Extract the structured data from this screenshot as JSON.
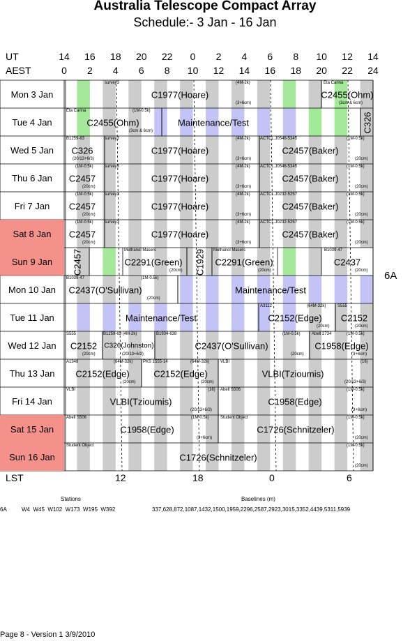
{
  "title": "Australia Telescope Compact Array",
  "subtitle": "Schedule:- 3  Jan - 16 Jan",
  "header": {
    "ut_label": "UT",
    "aest_label": "AEST",
    "ut_ticks": [
      "14",
      "16",
      "18",
      "20",
      "22",
      "0",
      "2",
      "4",
      "6",
      "8",
      "10",
      "12",
      "14"
    ],
    "aest_ticks": [
      "0",
      "2",
      "4",
      "6",
      "8",
      "10",
      "12",
      "14",
      "16",
      "18",
      "20",
      "22",
      "24"
    ]
  },
  "days": [
    {
      "label": "Mon   3  Jan",
      "weekend": false
    },
    {
      "label": "Tue   4  Jan",
      "weekend": false
    },
    {
      "label": "Wed   5  Jan",
      "weekend": false
    },
    {
      "label": "Thu   6  Jan",
      "weekend": false
    },
    {
      "label": "Fri    7  Jan",
      "weekend": false
    },
    {
      "label": "Sat   8  Jan",
      "weekend": true
    },
    {
      "label": "Sun   9  Jan",
      "weekend": true
    },
    {
      "label": "Mon  10 Jan",
      "weekend": false
    },
    {
      "label": "Tue   11 Jan",
      "weekend": false
    },
    {
      "label": "Wed  12 Jan",
      "weekend": false
    },
    {
      "label": "Thu   13 Jan",
      "weekend": false
    },
    {
      "label": "Fri    14 Jan",
      "weekend": false
    },
    {
      "label": "Sat   15 Jan",
      "weekend": true
    },
    {
      "label": "Sun   16 Jan",
      "weekend": true
    }
  ],
  "blocks": [
    {
      "row": 0,
      "label": "C1977(Hoare)",
      "start": 94,
      "end": 461,
      "label_x": 258,
      "tl": "survey3",
      "tl_x": 150,
      "tr": "(4M-2k)",
      "tr_x": 338,
      "br": "(3+6cm)",
      "br_x": 338
    },
    {
      "row": 0,
      "label": "C2455(Ohm)",
      "start": 461,
      "end": 535,
      "label_x": 498,
      "tl": "Eta Carina",
      "tl_x": 464,
      "br": "(3cm & 6cm)",
      "br_x": 486
    },
    {
      "row": 1,
      "label": "C2455(Ohm)",
      "start": 94,
      "end": 232,
      "label_x": 162,
      "tl": "Eta Carina",
      "tl_x": 95,
      "tr": "(1M-0.5k)",
      "tr_x": 190,
      "br": "(3cm & 6cm)",
      "br_x": 185
    },
    {
      "row": 1,
      "label": "Maintenance/Test",
      "start": 232,
      "end": 517,
      "label_x": 306
    },
    {
      "row": 1,
      "label": "C326",
      "start": 517,
      "end": 535,
      "label_x": 527,
      "vertical": true
    },
    {
      "row": 2,
      "label": "C326",
      "start": 94,
      "end": 150,
      "label_x": 118,
      "tl": "B1259-63",
      "tl_x": 95,
      "br": "(20/13+6/3)",
      "br_x": 104
    },
    {
      "row": 2,
      "label": "C1977(Hoare)",
      "start": 150,
      "end": 372,
      "label_x": 258,
      "tl": "survey3",
      "tl_x": 150,
      "tr": "(4M-2k)",
      "tr_x": 338,
      "br": "(3+6cm)",
      "br_x": 338
    },
    {
      "row": 2,
      "label": "C2457(Baker)",
      "start": 372,
      "end": 535,
      "label_x": 445,
      "tl": "ACTCL.J0546-5345",
      "tl_x": 373,
      "tr": "(1M-0.5k)",
      "tr_x": 497,
      "br": "(20cm)",
      "br_x": 509
    },
    {
      "row": 3,
      "label": "C2457",
      "start": 94,
      "end": 150,
      "label_x": 118,
      "tl": "(1M-0.5k)",
      "tl_x": 108,
      "br": "(20cm)",
      "br_x": 118
    },
    {
      "row": 3,
      "label": "C1977(Hoare)",
      "start": 150,
      "end": 372,
      "label_x": 258,
      "tl": "survey3",
      "tl_x": 150,
      "tr": "(4M-2k)",
      "tr_x": 338,
      "br": "(3+6cm)",
      "br_x": 338
    },
    {
      "row": 3,
      "label": "C2457(Baker)",
      "start": 372,
      "end": 535,
      "label_x": 445,
      "tl": "ACTCL.J0546-5345",
      "tl_x": 373,
      "tr": "(1M-0.5k)",
      "tr_x": 497,
      "br": "(20cm)",
      "br_x": 509
    },
    {
      "row": 4,
      "label": "C2457",
      "start": 94,
      "end": 150,
      "label_x": 118,
      "tl": "(1M-0.5k)",
      "tl_x": 108,
      "br": "(20cm)",
      "br_x": 118
    },
    {
      "row": 4,
      "label": "C1977(Hoare)",
      "start": 150,
      "end": 372,
      "label_x": 258,
      "tl": "survey3",
      "tl_x": 150,
      "tr": "(4M-2k)",
      "tr_x": 338,
      "br": "(3+6cm)",
      "br_x": 338
    },
    {
      "row": 4,
      "label": "C2457(Baker)",
      "start": 372,
      "end": 535,
      "label_x": 445,
      "tl": "ACTCL.J0232-5257",
      "tl_x": 373,
      "tr": "(1M-0.5k)",
      "tr_x": 497,
      "br": "(20cm)",
      "br_x": 509
    },
    {
      "row": 5,
      "label": "C2457",
      "start": 94,
      "end": 150,
      "label_x": 118,
      "tl": "(1M-0.5k)",
      "tl_x": 108,
      "br": "(20cm)",
      "br_x": 118
    },
    {
      "row": 5,
      "label": "C1977(Hoare)",
      "start": 150,
      "end": 372,
      "label_x": 258,
      "tl": "survey3",
      "tl_x": 150,
      "tr": "(4M-2k)",
      "tr_x": 338,
      "br": "(3+6cm)",
      "br_x": 338
    },
    {
      "row": 5,
      "label": "C2457(Baker)",
      "start": 372,
      "end": 535,
      "label_x": 445,
      "tl": "ACTCL.J0232-5257",
      "tl_x": 373,
      "tr": "(1M-0.5k)",
      "tr_x": 497,
      "br": "(20cm)",
      "br_x": 509
    },
    {
      "row": 6,
      "label": "C2457",
      "start": 94,
      "end": 128,
      "label_x": 111,
      "vertical": true
    },
    {
      "row": 6,
      "label": "C2291(Green)",
      "start": 176,
      "end": 268,
      "label_x": 220,
      "tl": "Methanol Masers",
      "tl_x": 178,
      "br": "(20cm)",
      "br_x": 243
    },
    {
      "row": 6,
      "label": "C1929",
      "start": 268,
      "end": 304,
      "label_x": 287,
      "vertical": true
    },
    {
      "row": 6,
      "label": "C2291(Green)",
      "start": 304,
      "end": 398,
      "label_x": 350,
      "tl": "Methanol Masers",
      "tl_x": 306,
      "br": "(20cm)",
      "br_x": 370
    },
    {
      "row": 6,
      "label": "C2437",
      "start": 461,
      "end": 535,
      "label_x": 498,
      "tl": "B1039-47",
      "tl_x": 465,
      "br": "(20cm)",
      "br_x": 509
    },
    {
      "row": 7,
      "label": "C2437(O'Sullivan)",
      "start": 94,
      "end": 255,
      "label_x": 151,
      "tl": "B1039-47",
      "tl_x": 95,
      "tr": "(1M-0.5k)",
      "tr_x": 202,
      "br": "(20cm)",
      "br_x": 211
    },
    {
      "row": 7,
      "label": "Maintenance/Test",
      "start": 255,
      "end": 535,
      "label_x": 388
    },
    {
      "row": 8,
      "label": "Maintenance/Test",
      "start": 94,
      "end": 371,
      "label_x": 231
    },
    {
      "row": 8,
      "label": "C2152(Edge)",
      "start": 371,
      "end": 481,
      "label_x": 423,
      "tl": "A3112",
      "tl_x": 373,
      "tr": "(64M-32k)",
      "tr_x": 440,
      "br": "(20cm)",
      "br_x": 454
    },
    {
      "row": 8,
      "label": "C2152",
      "start": 481,
      "end": 535,
      "label_x": 508,
      "tl": "S555",
      "tl_x": 484,
      "br": "(20cm)",
      "br_x": 509
    },
    {
      "row": 9,
      "label": "C2152",
      "start": 94,
      "end": 147,
      "label_x": 120,
      "tl": "S555",
      "tl_x": 95,
      "br": "(20cm)",
      "br_x": 118
    },
    {
      "row": 9,
      "label": "C326(Johnston)",
      "start": 147,
      "end": 222,
      "label_x": 185,
      "tl": "B1259-63  (4M-2k)",
      "tl_x": 148,
      "br": "(20/13+6/3)",
      "br_x": 175,
      "small": true
    },
    {
      "row": 9,
      "label": "C2437(O'Sullivan)",
      "start": 222,
      "end": 444,
      "label_x": 332,
      "tl": "B1934-638",
      "tl_x": 224,
      "tr": "(1M-0.5k)",
      "tr_x": 405,
      "br": "(20cm)",
      "br_x": 417
    },
    {
      "row": 9,
      "label": "C1958(Edge)",
      "start": 444,
      "end": 535,
      "label_x": 490,
      "tl": "Abell 2734",
      "tl_x": 447,
      "tr": "(1M-0.5k)",
      "tr_x": 497,
      "br": "(3+6cm)",
      "br_x": 504
    },
    {
      "row": 10,
      "label": "C2152(Edge)",
      "start": 94,
      "end": 203,
      "label_x": 147,
      "tl": "A1348",
      "tl_x": 95,
      "tr": "(64M-32k)",
      "tr_x": 163,
      "br": "(20cm)",
      "br_x": 176
    },
    {
      "row": 10,
      "label": "C2152(Edge)",
      "start": 203,
      "end": 313,
      "label_x": 259,
      "tl": "PKS 1555-14",
      "tl_x": 205,
      "tr": "(64M-32k)",
      "tr_x": 273,
      "br": "(20cm)",
      "br_x": 288
    },
    {
      "row": 10,
      "label": "VLBI(Tzioumis)",
      "start": 313,
      "end": 535,
      "label_x": 420,
      "tl": "VLBI",
      "tl_x": 316,
      "tr": "(16)",
      "tr_x": 517,
      "br": "(20/13+6/3)",
      "br_x": 494
    },
    {
      "row": 11,
      "label": "VLBI(Tzioumis)",
      "start": 94,
      "end": 313,
      "label_x": 202,
      "tl": "VLBI",
      "tl_x": 95,
      "tr": "(16)",
      "tr_x": 298,
      "br": "(20/13+6/3)",
      "br_x": 273
    },
    {
      "row": 11,
      "label": "C1958(Edge)",
      "start": 313,
      "end": 535,
      "label_x": 423,
      "tl": "Abell S506",
      "tl_x": 316,
      "tr": "(1M-0.5k)",
      "tr_x": 497,
      "br": "(3+6cm)",
      "br_x": 504
    },
    {
      "row": 12,
      "label": "C1958(Edge)",
      "start": 94,
      "end": 313,
      "label_x": 211,
      "tl": "Abell S506",
      "tl_x": 95,
      "tr": "(1M-0.5k)",
      "tr_x": 274,
      "br": "(3+6cm)",
      "br_x": 282
    },
    {
      "row": 12,
      "label": "C1726(Schnitzeler)",
      "start": 313,
      "end": 535,
      "label_x": 424,
      "tl": "Student Object",
      "tl_x": 316,
      "tr": "(1M-0.5k)",
      "tr_x": 497,
      "br": "(20cm)",
      "br_x": 509
    },
    {
      "row": 13,
      "label": "C1726(Schnitzeler)",
      "start": 94,
      "end": 535,
      "label_x": 313,
      "tl": "Student Object",
      "tl_x": 95,
      "tr": "(1M-0.5k)",
      "tr_x": 497,
      "br": "(20cm)",
      "br_x": 509
    }
  ],
  "lst": {
    "label": "LST",
    "ticks": [
      {
        "v": "12",
        "x": 171
      },
      {
        "v": "18",
        "x": 282
      },
      {
        "v": "0",
        "x": 392
      },
      {
        "v": "6",
        "x": 503
      }
    ]
  },
  "config": "6A",
  "stations_title": "Stations",
  "baselines_title": "Baselines (m)",
  "config_row": {
    "name": "6A",
    "stations": "W4  W45  W102  W173  W195  W392",
    "baselines": "337,628,872,1087,1432,1500,1959,2296,2587,2923,3015,3352,4439,5311,5939"
  },
  "footer": "Page 8 - Version 1  3/9/2010",
  "colors": {
    "grey": "#cccccc",
    "green": "#a4e89a",
    "lavender": "#c3c3f6",
    "weekend": "#f4918b"
  }
}
